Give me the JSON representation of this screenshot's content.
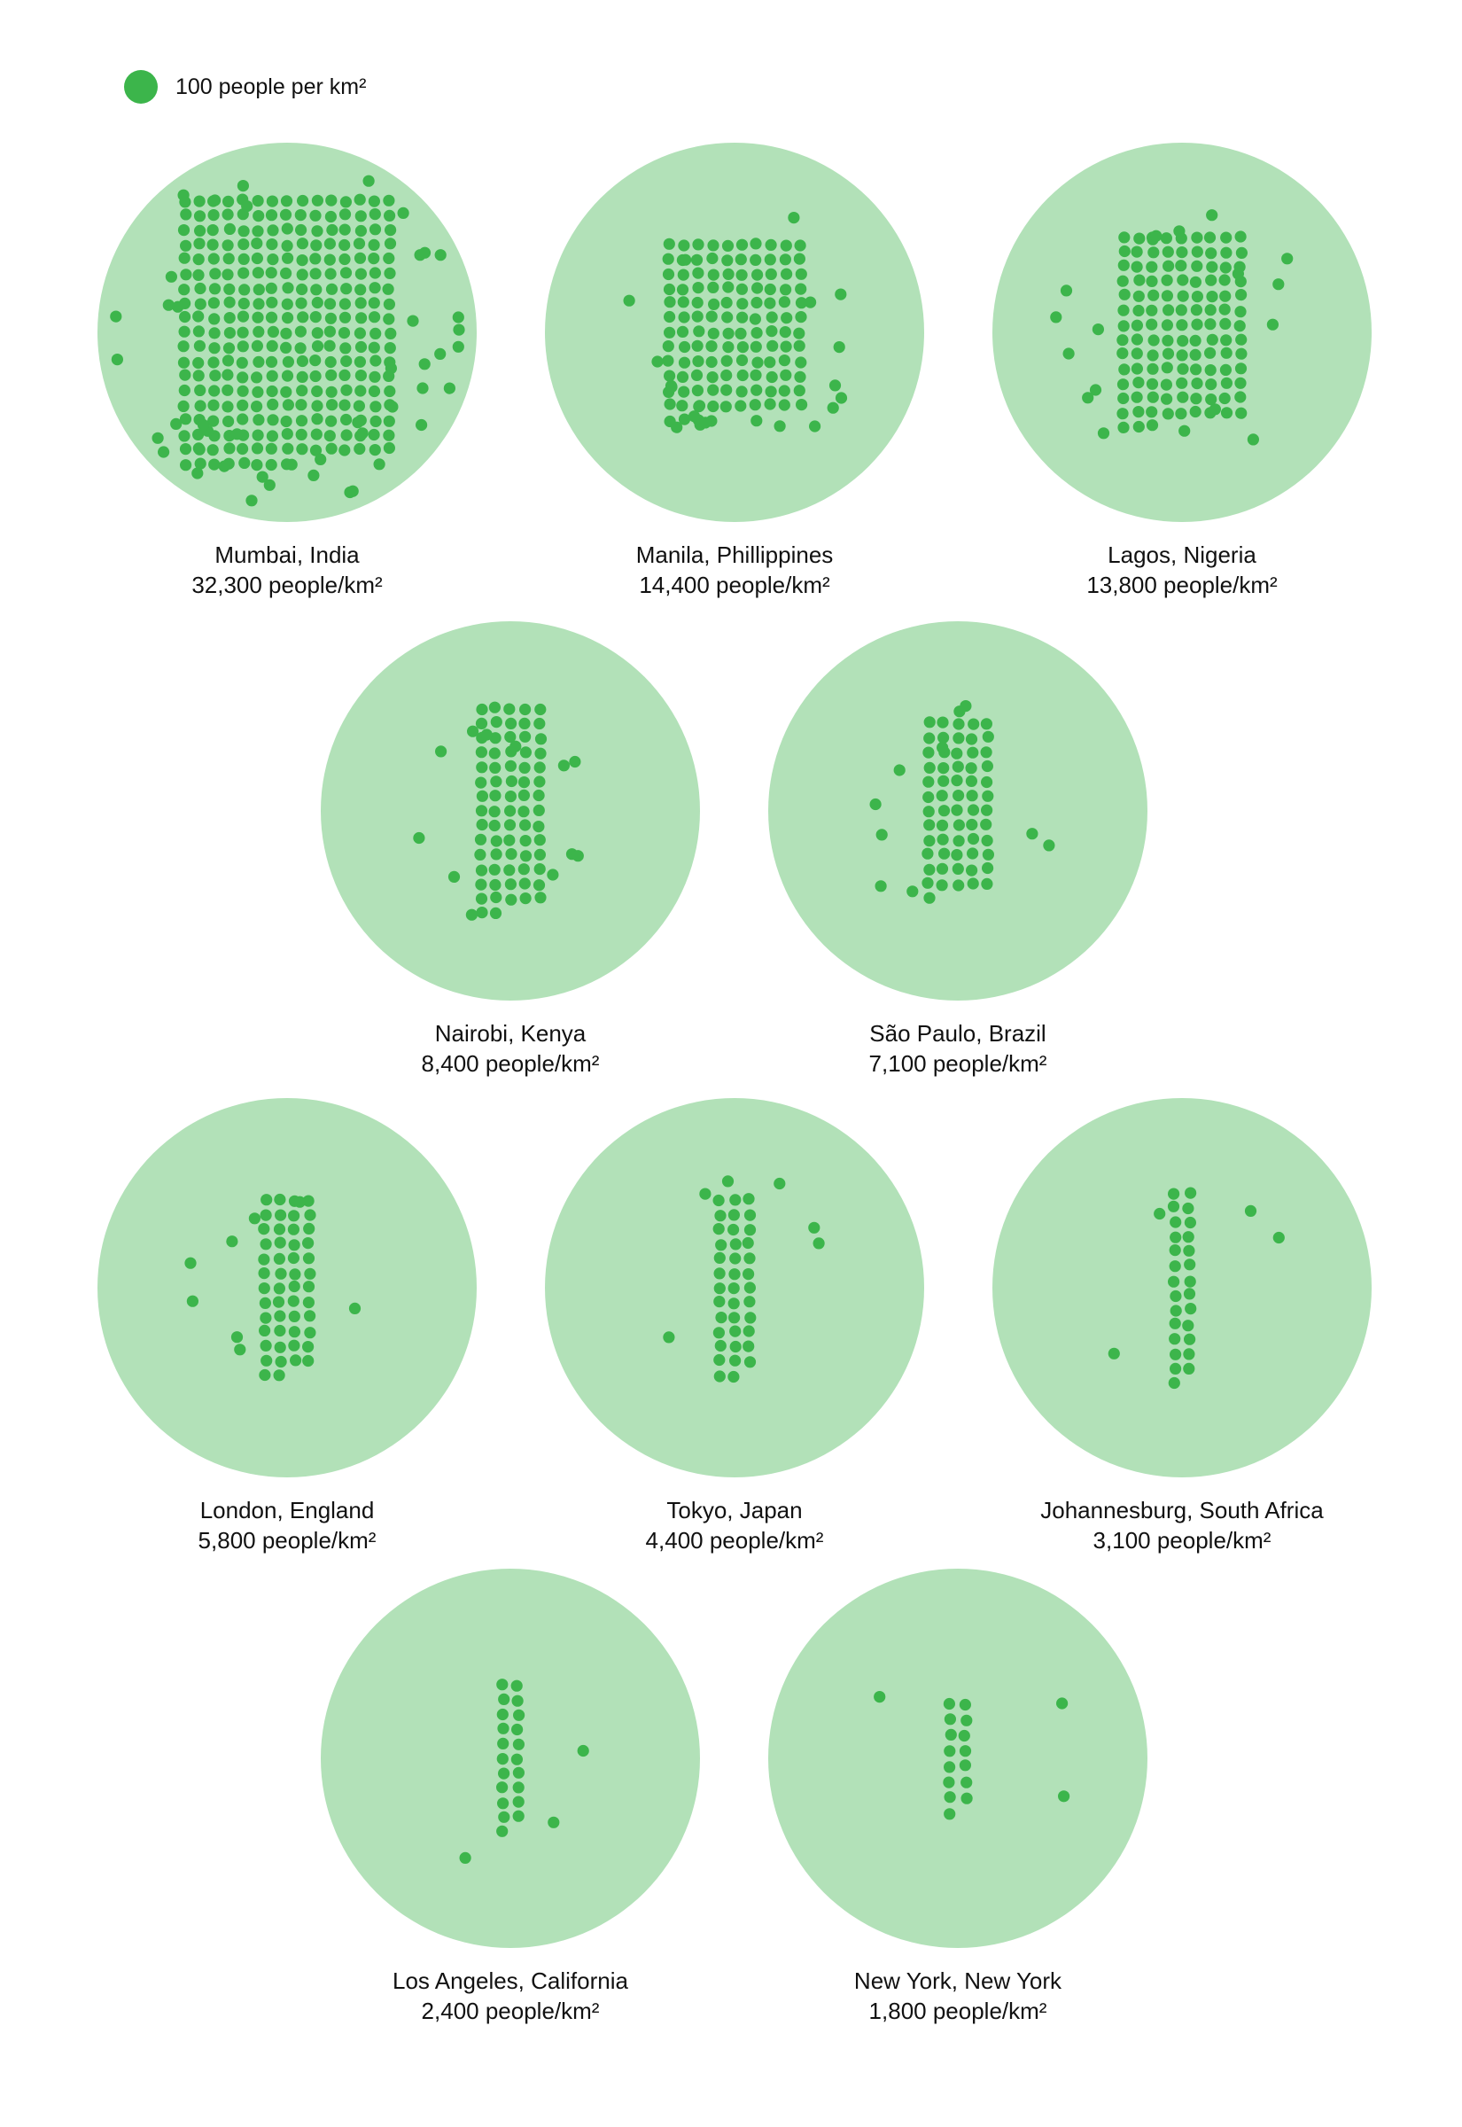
{
  "colors": {
    "circle": "#b2e1b8",
    "dot": "#3cb54b"
  },
  "chart_data": {
    "type": "dot-density",
    "legend": {
      "label": "100 people per km²",
      "units_per_dot": 100
    },
    "cities": [
      {
        "name": "Mumbai, India",
        "density_label": "32,300 people/km²",
        "density": 32300
      },
      {
        "name": "Manila, Phillippines",
        "density_label": "14,400 people/km²",
        "density": 14400
      },
      {
        "name": "Lagos, Nigeria",
        "density_label": "13,800 people/km²",
        "density": 13800
      },
      {
        "name": "Nairobi, Kenya",
        "density_label": "8,400 people/km²",
        "density": 8400
      },
      {
        "name": "São Paulo, Brazil",
        "density_label": "7,100 people/km²",
        "density": 7100
      },
      {
        "name": "London, England",
        "density_label": "5,800 people/km²",
        "density": 5800
      },
      {
        "name": "Tokyo, Japan",
        "density_label": "4,400 people/km²",
        "density": 4400
      },
      {
        "name": "Johannesburg, South Africa",
        "density_label": "3,100 people/km²",
        "density": 3100
      },
      {
        "name": "Los Angeles, California",
        "density_label": "2,400 people/km²",
        "density": 2400
      },
      {
        "name": "New York, New York",
        "density_label": "1,800 people/km²",
        "density": 1800
      }
    ]
  }
}
